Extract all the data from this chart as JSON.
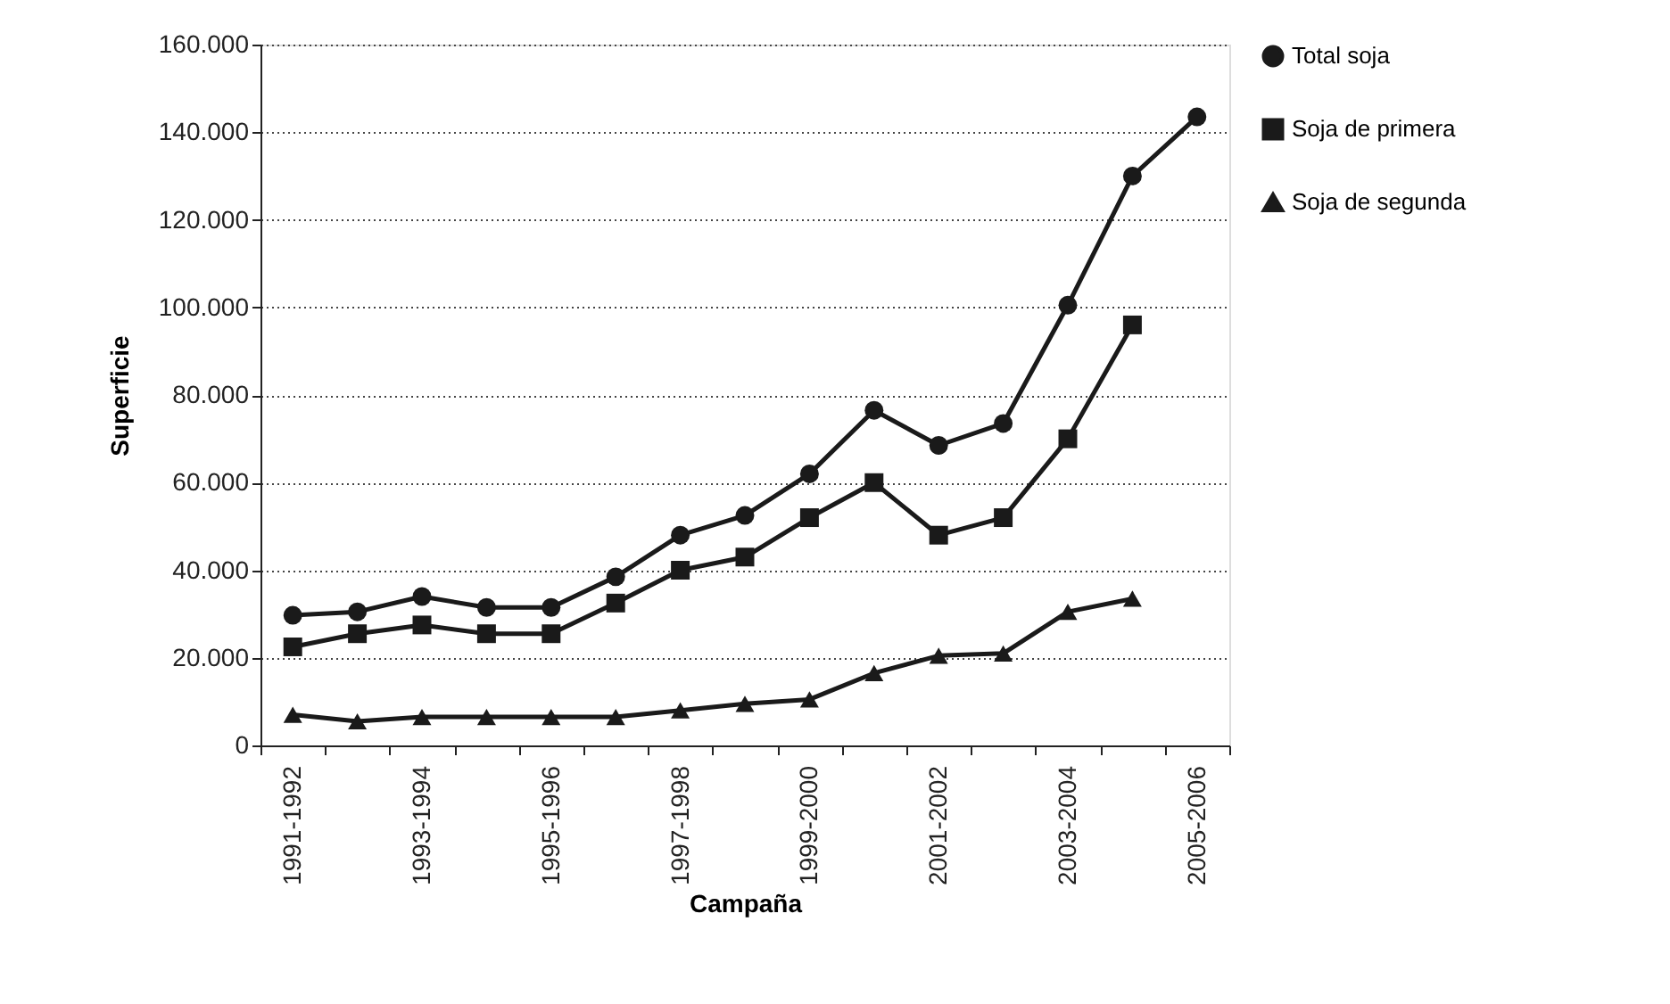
{
  "chart_data": {
    "type": "line",
    "xlabel": "Campaña",
    "ylabel": "Superficie",
    "categories": [
      "1991-1992",
      null,
      "1993-1994",
      null,
      "1995-1996",
      null,
      "1997-1998",
      null,
      "1999-2000",
      null,
      "2001-2002",
      null,
      "2003-2004",
      null,
      "2005-2006"
    ],
    "series": [
      {
        "name": "Total soja",
        "color": "#1a1a1a",
        "marker": "circle",
        "values": [
          29700,
          30500,
          34000,
          31500,
          31500,
          38500,
          48000,
          52500,
          62000,
          76500,
          68500,
          73500,
          100500,
          130000,
          143500
        ]
      },
      {
        "name": "Soja de primera",
        "color": "#1a1a1a",
        "marker": "square",
        "values": [
          22500,
          25500,
          27500,
          25500,
          25500,
          32500,
          40000,
          43000,
          52000,
          60000,
          48000,
          52000,
          70000,
          96000,
          null
        ]
      },
      {
        "name": "Soja de segunda",
        "color": "#1a1a1a",
        "marker": "triangle",
        "values": [
          7000,
          5500,
          6500,
          6500,
          6500,
          6500,
          8000,
          9500,
          10500,
          16500,
          20500,
          21000,
          30500,
          33500,
          null
        ]
      }
    ],
    "ylim": [
      0,
      160000
    ],
    "yticks": [
      {
        "value": 0,
        "label": "0"
      },
      {
        "value": 20000,
        "label": "20.000"
      },
      {
        "value": 40000,
        "label": "40.000"
      },
      {
        "value": 60000,
        "label": "60.000"
      },
      {
        "value": 80000,
        "label": "80.000"
      },
      {
        "value": 100000,
        "label": "100.000"
      },
      {
        "value": 120000,
        "label": "120.000"
      },
      {
        "value": 140000,
        "label": "140.000"
      },
      {
        "value": 160000,
        "label": "160.000"
      }
    ],
    "grid": "y",
    "legend": "right",
    "line_style": "solid"
  }
}
